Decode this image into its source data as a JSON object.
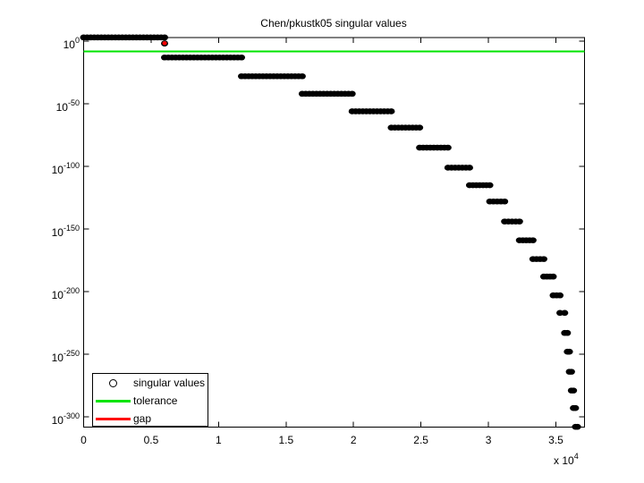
{
  "chart_data": {
    "type": "scatter",
    "title": "Chen/pkustk05 singular values",
    "xlabel": "",
    "ylabel": "",
    "grid": false,
    "legend_position": "southwest",
    "xlim": [
      0,
      37120
    ],
    "ylim_log10": [
      -308.2,
      2.9
    ],
    "x_tick_values": [
      0,
      5000,
      10000,
      15000,
      20000,
      25000,
      30000,
      35000
    ],
    "x_tick_labels": [
      "0",
      "0.5",
      "1",
      "1.5",
      "2",
      "2.5",
      "3",
      "3.5"
    ],
    "x_axis_exponent_prefix": "x 10",
    "x_axis_exponent": "4",
    "y_tick_base": "10",
    "y_tick_exponents": [
      "0",
      "-50",
      "-100",
      "-150",
      "-200",
      "-250",
      "-300"
    ],
    "series": {
      "singular_values": {
        "label": "singular values",
        "marker": "filled-dot",
        "color": "#000000",
        "plateaus": [
          {
            "x_start": 0,
            "x_end": 6000,
            "log10_value": 3
          },
          {
            "x_start": 6000,
            "x_end": 11700,
            "log10_value": -13
          },
          {
            "x_start": 11700,
            "x_end": 16200,
            "log10_value": -28
          },
          {
            "x_start": 16200,
            "x_end": 19900,
            "log10_value": -42
          },
          {
            "x_start": 19900,
            "x_end": 22800,
            "log10_value": -56
          },
          {
            "x_start": 22800,
            "x_end": 24900,
            "log10_value": -69
          },
          {
            "x_start": 24900,
            "x_end": 27000,
            "log10_value": -85
          },
          {
            "x_start": 27000,
            "x_end": 28600,
            "log10_value": -101
          },
          {
            "x_start": 28600,
            "x_end": 30100,
            "log10_value": -115
          },
          {
            "x_start": 30100,
            "x_end": 31200,
            "log10_value": -128
          },
          {
            "x_start": 31200,
            "x_end": 32300,
            "log10_value": -144
          },
          {
            "x_start": 32300,
            "x_end": 33300,
            "log10_value": -159
          },
          {
            "x_start": 33300,
            "x_end": 34100,
            "log10_value": -174
          },
          {
            "x_start": 34100,
            "x_end": 34800,
            "log10_value": -188
          },
          {
            "x_start": 34800,
            "x_end": 35300,
            "log10_value": -203
          },
          {
            "x_start": 35300,
            "x_end": 35650,
            "log10_value": -217
          },
          {
            "x_start": 35650,
            "x_end": 35850,
            "log10_value": -233
          },
          {
            "x_start": 35850,
            "x_end": 36000,
            "log10_value": -248
          },
          {
            "x_start": 36000,
            "x_end": 36150,
            "log10_value": -264
          },
          {
            "x_start": 36150,
            "x_end": 36300,
            "log10_value": -279
          },
          {
            "x_start": 36300,
            "x_end": 36450,
            "log10_value": -293
          },
          {
            "x_start": 36450,
            "x_end": 36600,
            "log10_value": -308
          }
        ]
      },
      "tolerance": {
        "label": "tolerance",
        "type": "hline",
        "color": "#00e400",
        "log10_value": -8.2
      },
      "gap": {
        "label": "gap",
        "type": "marker",
        "color": "#ff0000",
        "x": 6000,
        "log10_value": 0
      }
    }
  },
  "legend": {
    "items": [
      {
        "label": "singular values",
        "swatch": "circle-marker",
        "color": "#000000"
      },
      {
        "label": "tolerance",
        "swatch": "line",
        "color": "#00e400"
      },
      {
        "label": "gap",
        "swatch": "line",
        "color": "#ff0000"
      }
    ]
  }
}
